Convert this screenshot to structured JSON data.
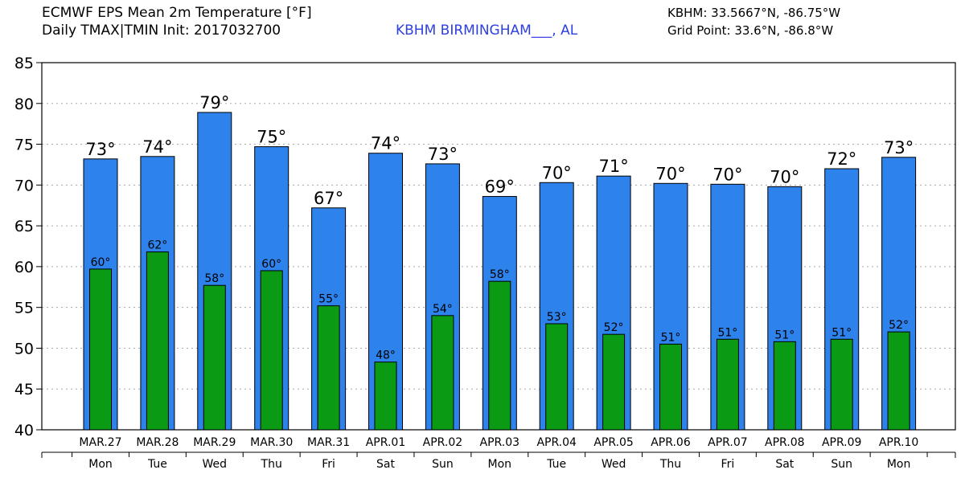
{
  "header": {
    "title_line1": "ECMWF EPS Mean 2m Temperature [°F]",
    "title_line2": "Daily TMAX|TMIN Init: 2017032700",
    "station": "KBHM BIRMINGHAM___, AL",
    "coords_line1": "KBHM: 33.5667°N, -86.75°W",
    "coords_line2": "Grid Point: 33.6°N, -86.8°W"
  },
  "colors": {
    "tmax_bar": "#2e82ec",
    "tmin_bar": "#0a9a14",
    "grid": "#aaaaaa",
    "station_text": "#2f3fe0"
  },
  "chart_data": {
    "type": "bar",
    "categories": [
      "MAR.27",
      "MAR.28",
      "MAR.29",
      "MAR.30",
      "MAR.31",
      "APR.01",
      "APR.02",
      "APR.03",
      "APR.04",
      "APR.05",
      "APR.06",
      "APR.07",
      "APR.08",
      "APR.09",
      "APR.10"
    ],
    "days": [
      "Mon",
      "Tue",
      "Wed",
      "Thu",
      "Fri",
      "Sat",
      "Sun",
      "Mon",
      "Tue",
      "Wed",
      "Thu",
      "Fri",
      "Sat",
      "Sun",
      "Mon"
    ],
    "series": [
      {
        "values": [
          73.2,
          73.5,
          78.9,
          74.7,
          67.2,
          73.9,
          72.6,
          68.6,
          70.3,
          71.1,
          70.2,
          70.1,
          69.8,
          72.0,
          73.4
        ],
        "labels": [
          "73°",
          "74°",
          "79°",
          "75°",
          "67°",
          "74°",
          "73°",
          "69°",
          "70°",
          "71°",
          "70°",
          "70°",
          "70°",
          "72°",
          "73°"
        ]
      },
      {
        "values": [
          59.7,
          61.8,
          57.7,
          59.5,
          55.2,
          48.3,
          54.0,
          58.2,
          53.0,
          51.7,
          50.5,
          51.1,
          50.8,
          51.1,
          52.0
        ],
        "labels": [
          "60°",
          "62°",
          "58°",
          "60°",
          "55°",
          "48°",
          "54°",
          "58°",
          "53°",
          "52°",
          "51°",
          "51°",
          "51°",
          "51°",
          "52°"
        ]
      }
    ],
    "ylim": [
      40,
      85
    ],
    "yticks": [
      "40",
      "45",
      "50",
      "55",
      "60",
      "65",
      "70",
      "75",
      "80",
      "85"
    ],
    "grid": true,
    "legend": "none"
  }
}
